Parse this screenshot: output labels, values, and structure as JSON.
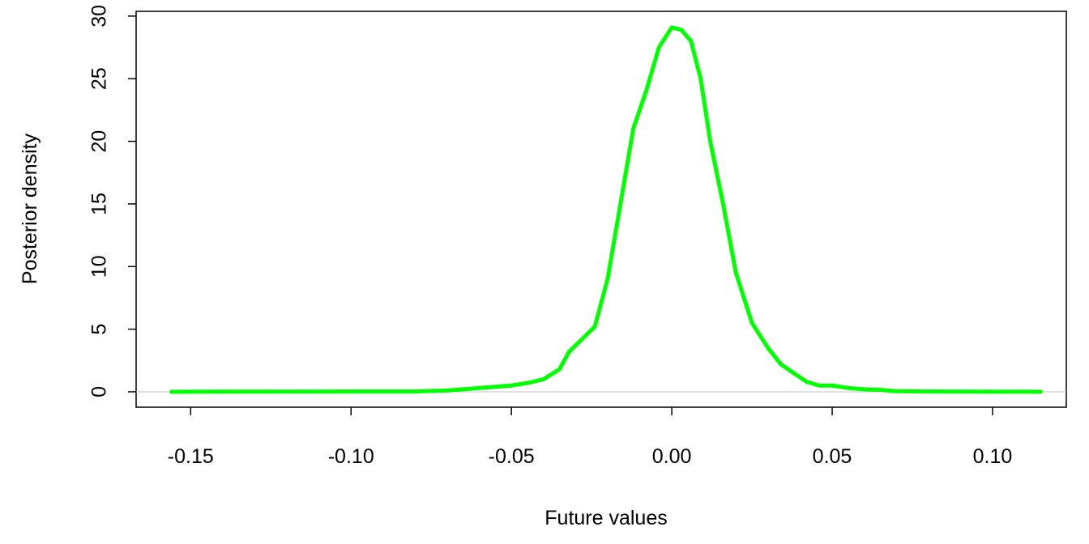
{
  "chart_data": {
    "type": "line",
    "xlabel": "Future values",
    "ylabel": "Posterior density",
    "x": [
      -0.156,
      -0.1,
      -0.08,
      -0.07,
      -0.06,
      -0.05,
      -0.045,
      -0.04,
      -0.035,
      -0.032,
      -0.028,
      -0.024,
      -0.02,
      -0.016,
      -0.012,
      -0.008,
      -0.004,
      0,
      0.003,
      0.006,
      0.009,
      0.012,
      0.016,
      0.02,
      0.025,
      0.03,
      0.034,
      0.038,
      0.042,
      0.046,
      0.05,
      0.055,
      0.06,
      0.065,
      0.07,
      0.08,
      0.1,
      0.115
    ],
    "series": [
      {
        "color": "#00ff00",
        "values": [
          0,
          0.02,
          0.02,
          0.1,
          0.3,
          0.5,
          0.7,
          1.0,
          1.8,
          3.2,
          4.2,
          5.2,
          9,
          15,
          21,
          24,
          27.5,
          29.1,
          28.9,
          28,
          25,
          20,
          15,
          9.5,
          5.5,
          3.5,
          2.2,
          1.5,
          0.8,
          0.5,
          0.5,
          0.3,
          0.2,
          0.15,
          0.05,
          0.02,
          0.01,
          0
        ]
      }
    ],
    "hline": 0,
    "hline_color": "#c0c0c0",
    "xlim": [
      -0.167,
      0.123
    ],
    "ylim": [
      -1.23,
      30.38
    ],
    "xticks": [
      -0.15,
      {
        "value": -0.1,
        "label": "-0.10"
      },
      -0.05,
      {
        "value": 0,
        "label": "0.00"
      },
      0.05,
      {
        "value": 0.1,
        "label": "0.10"
      }
    ],
    "yticks": [
      0,
      5,
      10,
      15,
      20,
      25,
      30
    ]
  }
}
